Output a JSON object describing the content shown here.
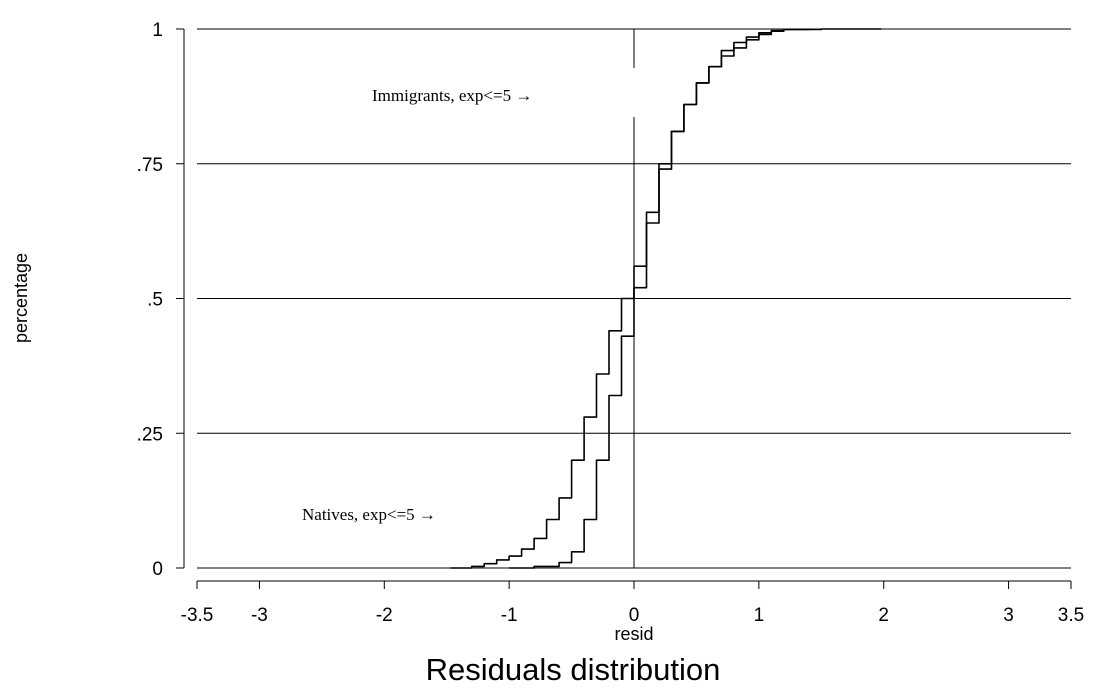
{
  "chart_data": {
    "type": "line",
    "title": "Residuals distribution",
    "xlabel": "resid",
    "ylabel": "percentage",
    "xlim": [
      -3.5,
      3.5
    ],
    "ylim": [
      0,
      1
    ],
    "x_ticks": [
      -3.5,
      -3,
      -2,
      -1,
      0,
      1,
      2,
      3,
      3.5
    ],
    "x_tick_labels": [
      "-3.5",
      "-3",
      "-2",
      "-1",
      "0",
      "1",
      "2",
      "3",
      "3.5"
    ],
    "y_ticks": [
      0,
      0.25,
      0.5,
      0.75,
      1
    ],
    "y_tick_labels": [
      "0",
      ".25",
      ".5",
      ".75",
      "1"
    ],
    "grid": "horizontal",
    "reference_line_x": 0,
    "annotations": [
      {
        "text": "Immigrants,  exp<=5 →",
        "x": -0.3,
        "y": 0.87
      },
      {
        "text": "Natives, exp<=5  →",
        "x": -1.2,
        "y": 0.1
      }
    ],
    "series": [
      {
        "x": [
          -1.47,
          -1.3,
          -1.2,
          -1.1,
          -1.0,
          -0.9,
          -0.8,
          -0.7,
          -0.6,
          -0.5,
          -0.4,
          -0.3,
          -0.2,
          -0.1,
          0.0,
          0.1,
          0.2,
          0.3,
          0.4,
          0.5,
          0.6,
          0.7,
          0.8,
          0.9,
          1.0,
          1.1,
          1.2,
          1.5,
          1.98
        ],
        "values": [
          0.0,
          0.003,
          0.008,
          0.015,
          0.022,
          0.035,
          0.055,
          0.09,
          0.13,
          0.2,
          0.28,
          0.36,
          0.44,
          0.5,
          0.56,
          0.66,
          0.75,
          0.81,
          0.86,
          0.9,
          0.93,
          0.96,
          0.975,
          0.985,
          0.993,
          0.997,
          0.999,
          1.0,
          1.0
        ]
      },
      {
        "x": [
          -1.0,
          -0.8,
          -0.6,
          -0.5,
          -0.4,
          -0.3,
          -0.2,
          -0.1,
          0.0,
          0.1,
          0.2,
          0.3,
          0.4,
          0.5,
          0.6,
          0.7,
          0.8,
          0.9,
          1.0,
          1.1,
          1.2,
          1.4
        ],
        "values": [
          0.0,
          0.003,
          0.01,
          0.03,
          0.09,
          0.2,
          0.32,
          0.43,
          0.52,
          0.64,
          0.74,
          0.81,
          0.86,
          0.9,
          0.93,
          0.95,
          0.965,
          0.98,
          0.99,
          0.996,
          0.999,
          1.0
        ]
      }
    ]
  }
}
